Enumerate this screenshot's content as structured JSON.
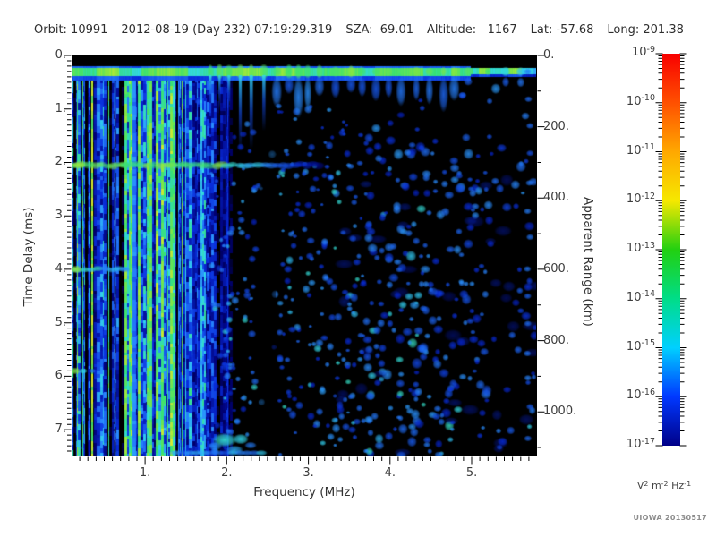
{
  "header": {
    "fields": [
      "Orbit: 10991",
      "2012-08-19 (Day 232) 07:19:29.319",
      "SZA:  69.01",
      "Altitude:   1167",
      "Lat: -57.68",
      "Long: 201.38"
    ]
  },
  "credit": "UIOWA 20130517",
  "chart_data": {
    "type": "heatmap",
    "x_axis": {
      "label": "Frequency (MHz)",
      "range": [
        0.1,
        5.8
      ],
      "major_ticks": [
        1,
        2,
        3,
        4,
        5
      ],
      "major_tick_labels": [
        "1.",
        "2.",
        "3.",
        "4.",
        "5."
      ],
      "minor_tick_step": 0.1
    },
    "y_axis": {
      "label": "Time Delay (ms)",
      "range": [
        0,
        7.5
      ],
      "direction": "down",
      "major_ticks": [
        0,
        1,
        2,
        3,
        4,
        5,
        6,
        7
      ],
      "major_tick_labels": [
        "0.",
        "1.",
        "2.",
        "3.",
        "4.",
        "5.",
        "6.",
        "7."
      ],
      "minor_tick_step": 0.1
    },
    "y2_axis": {
      "label": "Apparent Range (km)",
      "range": [
        0,
        1125
      ],
      "major_ticks": [
        0,
        200,
        400,
        600,
        800,
        1000
      ],
      "major_tick_labels": [
        "0.",
        "200.",
        "400.",
        "600.",
        "800.",
        "1000."
      ],
      "minor_tick_step": 100
    },
    "colorbar": {
      "tick_exponents": [
        "-9",
        "-10",
        "-11",
        "-12",
        "-13",
        "-14",
        "-15",
        "-16",
        "-17"
      ],
      "unit_segments": [
        {
          "base": "V",
          "exp": "2"
        },
        {
          "base": "m",
          "exp": "-2"
        },
        {
          "base": "Hz",
          "exp": "-1"
        }
      ],
      "gradient": [
        "#f80000",
        "#ff5000",
        "#ffa800",
        "#f6e800",
        "#22d010",
        "#00dd88",
        "#00d0ff",
        "#0038ff",
        "#000088"
      ]
    },
    "features": {
      "background": "#000000",
      "surface_echo_band": {
        "t_range_ms": [
          0.2,
          0.47
        ],
        "f_range_mhz": [
          0.1,
          5.8
        ]
      },
      "plasma_harmonic_stripes": {
        "f_range_mhz": [
          0.1,
          1.9
        ],
        "t_range_ms": [
          0.15,
          7.5
        ]
      },
      "horizontal_interference_bands_ms": [
        2.05,
        4.0,
        5.9
      ],
      "attenuation_gap_mhz": [
        2.4,
        2.6
      ],
      "echo_island": {
        "f_range_mhz": [
          1.8,
          2.5
        ],
        "t_range_ms": [
          7.0,
          7.45
        ]
      },
      "noise_seed": 11
    }
  }
}
